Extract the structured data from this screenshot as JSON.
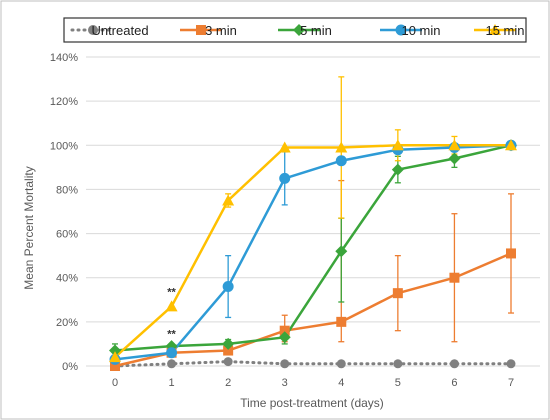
{
  "chart_data": {
    "type": "line",
    "title": "",
    "xlabel": "Time post-treatment (days)",
    "ylabel": "Mean Percent Mortality",
    "x": [
      0,
      1,
      2,
      3,
      4,
      5,
      6,
      7
    ],
    "xlim": [
      0,
      7
    ],
    "ylim": [
      0,
      140
    ],
    "yticks": [
      0,
      20,
      40,
      60,
      80,
      100,
      120,
      140
    ],
    "ytick_labels": [
      "0%",
      "20%",
      "40%",
      "60%",
      "80%",
      "100%",
      "120%",
      "140%"
    ],
    "xtick_labels": [
      "0",
      "1",
      "2",
      "3",
      "4",
      "5",
      "6",
      "7"
    ],
    "grid": "horizontal",
    "legend_position": "top",
    "series": [
      {
        "name": "Untreated",
        "color": "#808080",
        "marker": "circle",
        "line": "dotted",
        "values": [
          0,
          1,
          2,
          1,
          1,
          1,
          1,
          1
        ],
        "errors": [
          null,
          null,
          null,
          null,
          null,
          null,
          null,
          null
        ]
      },
      {
        "name": "3 min",
        "color": "#ED7D31",
        "marker": "square",
        "line": "solid",
        "values": [
          0,
          6,
          7,
          16,
          20,
          33,
          40,
          51
        ],
        "errors": [
          null,
          null,
          null,
          [
            11,
            23
          ],
          [
            11,
            84
          ],
          [
            16,
            50
          ],
          [
            11,
            69
          ],
          [
            24,
            78
          ]
        ]
      },
      {
        "name": "5 min",
        "color": "#3BA53B",
        "marker": "diamond",
        "line": "solid",
        "values": [
          7,
          9,
          10,
          13,
          52,
          89,
          94,
          100
        ],
        "errors": [
          [
            4,
            10
          ],
          null,
          [
            8,
            12
          ],
          [
            10,
            16
          ],
          [
            29,
            67
          ],
          [
            83,
            95
          ],
          [
            90,
            98
          ],
          null
        ]
      },
      {
        "name": "10 min",
        "color": "#2E9BD6",
        "marker": "circle",
        "line": "solid",
        "values": [
          3,
          6,
          36,
          85,
          93,
          98,
          99,
          100
        ],
        "errors": [
          null,
          null,
          [
            22,
            50
          ],
          [
            73,
            97
          ],
          null,
          null,
          null,
          null
        ]
      },
      {
        "name": "15 min",
        "color": "#FFC000",
        "marker": "triangle",
        "line": "solid",
        "values": [
          4,
          27,
          75,
          99,
          99,
          100,
          100,
          100
        ],
        "errors": [
          null,
          null,
          [
            72,
            78
          ],
          null,
          [
            67,
            131
          ],
          [
            93,
            107
          ],
          [
            96,
            104
          ],
          null
        ]
      }
    ],
    "annotations": [
      {
        "text": "**",
        "x": 1,
        "y": 32
      },
      {
        "text": "**",
        "x": 1,
        "y": 13
      }
    ]
  }
}
